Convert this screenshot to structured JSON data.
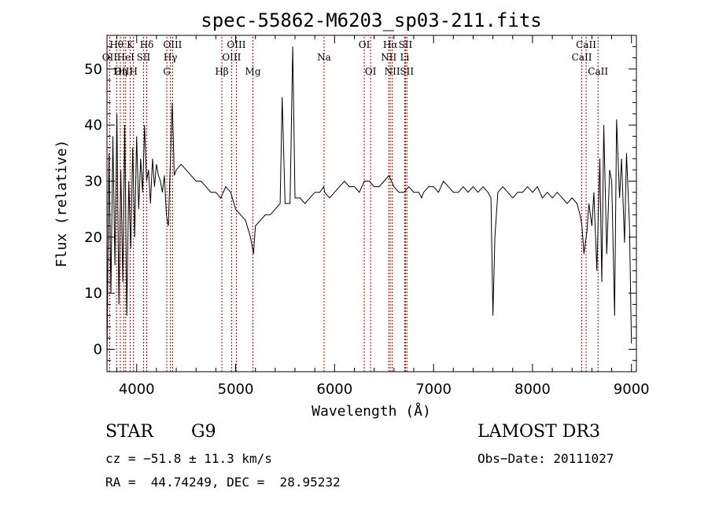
{
  "chart_data": {
    "type": "line",
    "title": "spec-55862-M6203_sp03-211.fits",
    "xlabel": "Wavelength (Å)",
    "ylabel": "Flux (relative)",
    "xlim": [
      3700,
      9050
    ],
    "ylim": [
      -4,
      56
    ],
    "xticks": [
      4000,
      5000,
      6000,
      7000,
      8000,
      9000
    ],
    "yticks": [
      0,
      10,
      20,
      30,
      40,
      50
    ],
    "grid": false,
    "line_color": "#000000",
    "marker_color": "#aa0000",
    "lines": [
      {
        "label": "Hθ",
        "wl": 3797,
        "row": 0
      },
      {
        "label": "OII",
        "wl": 3727,
        "row": 1
      },
      {
        "label": "OIII",
        "wl": 3869,
        "row": 2
      },
      {
        "label": "K",
        "wl": 3934,
        "row": 0
      },
      {
        "label": "HeI",
        "wl": 3889,
        "row": 1
      },
      {
        "label": "Hη",
        "wl": 3835,
        "row": 2
      },
      {
        "label": "Hδ",
        "wl": 4102,
        "row": 0
      },
      {
        "label": "SII",
        "wl": 4069,
        "row": 1
      },
      {
        "label": "H",
        "wl": 3968,
        "row": 2
      },
      {
        "label": "OIII",
        "wl": 4363,
        "row": 0
      },
      {
        "label": "Hγ",
        "wl": 4341,
        "row": 1
      },
      {
        "label": "G",
        "wl": 4305,
        "row": 2
      },
      {
        "label": "Hβ",
        "wl": 4861,
        "row": 2
      },
      {
        "label": "OIII",
        "wl": 5007,
        "row": 0
      },
      {
        "label": "OIII",
        "wl": 4959,
        "row": 1
      },
      {
        "label": "Mg",
        "wl": 5175,
        "row": 2
      },
      {
        "label": "Na",
        "wl": 5894,
        "row": 1
      },
      {
        "label": "OI",
        "wl": 6300,
        "row": 0
      },
      {
        "label": "OI",
        "wl": 6364,
        "row": 2
      },
      {
        "label": "Hα",
        "wl": 6563,
        "row": 0
      },
      {
        "label": "NII",
        "wl": 6548,
        "row": 1
      },
      {
        "label": "NII",
        "wl": 6583,
        "row": 2
      },
      {
        "label": "SII",
        "wl": 6716,
        "row": 0
      },
      {
        "label": "Li",
        "wl": 6708,
        "row": 1
      },
      {
        "label": "SII",
        "wl": 6731,
        "row": 2
      },
      {
        "label": "CaII",
        "wl": 8542,
        "row": 0
      },
      {
        "label": "CaII",
        "wl": 8498,
        "row": 1
      },
      {
        "label": "CaII",
        "wl": 8662,
        "row": 2
      }
    ],
    "spectrum": {
      "x": [
        3700,
        3720,
        3740,
        3760,
        3780,
        3800,
        3820,
        3840,
        3860,
        3880,
        3900,
        3920,
        3940,
        3960,
        3980,
        4000,
        4020,
        4040,
        4060,
        4080,
        4100,
        4120,
        4140,
        4160,
        4180,
        4200,
        4220,
        4240,
        4260,
        4280,
        4300,
        4320,
        4340,
        4360,
        4380,
        4400,
        4450,
        4500,
        4550,
        4600,
        4650,
        4700,
        4750,
        4800,
        4850,
        4900,
        4950,
        5000,
        5050,
        5100,
        5150,
        5180,
        5200,
        5250,
        5300,
        5350,
        5400,
        5450,
        5470,
        5500,
        5550,
        5577,
        5600,
        5650,
        5700,
        5750,
        5800,
        5850,
        5890,
        5900,
        5950,
        6000,
        6050,
        6100,
        6150,
        6200,
        6250,
        6300,
        6350,
        6400,
        6450,
        6500,
        6550,
        6600,
        6650,
        6700,
        6750,
        6800,
        6850,
        6880,
        6900,
        6950,
        7000,
        7050,
        7100,
        7150,
        7200,
        7250,
        7300,
        7350,
        7400,
        7450,
        7500,
        7550,
        7580,
        7600,
        7620,
        7650,
        7700,
        7750,
        7800,
        7850,
        7900,
        7950,
        8000,
        8050,
        8100,
        8150,
        8200,
        8250,
        8300,
        8350,
        8400,
        8450,
        8480,
        8500,
        8520,
        8550,
        8570,
        8600,
        8620,
        8650,
        8680,
        8700,
        8720,
        8750,
        8780,
        8800,
        8830,
        8850,
        8880,
        8900,
        8930,
        8950,
        8980,
        9000
      ],
      "y": [
        -2,
        35,
        10,
        38,
        15,
        42,
        8,
        32,
        12,
        40,
        6,
        30,
        18,
        36,
        20,
        38,
        25,
        34,
        28,
        40,
        30,
        32,
        26,
        34,
        29,
        33,
        31,
        30,
        28,
        31,
        24,
        22,
        33,
        44,
        31,
        32,
        33,
        32,
        31,
        30,
        30,
        29,
        28,
        28,
        27,
        29,
        28,
        25,
        24,
        23,
        20,
        17,
        22,
        23,
        24,
        24,
        25,
        26,
        45,
        26,
        26,
        54,
        27,
        27,
        26,
        27,
        28,
        28,
        29,
        28,
        27,
        28,
        29,
        30,
        29,
        29,
        28,
        30,
        30,
        29,
        29,
        30,
        31,
        29,
        28,
        28,
        29,
        28,
        28,
        27,
        28,
        29,
        29,
        28,
        30,
        29,
        28,
        28,
        29,
        28,
        29,
        28,
        29,
        28,
        27,
        6,
        20,
        28,
        29,
        28,
        27,
        28,
        28,
        29,
        28,
        29,
        27,
        28,
        27,
        28,
        27,
        26,
        27,
        26,
        24,
        22,
        17,
        21,
        26,
        22,
        28,
        14,
        34,
        12,
        40,
        17,
        32,
        30,
        6,
        41,
        27,
        34,
        19,
        35,
        22,
        1
      ]
    }
  },
  "info": {
    "object_class": "STAR",
    "subclass": "G9",
    "survey": "LAMOST DR3",
    "redshift_line": "cz = −51.8 ± 11.3 km/s",
    "obs_date": "Obs−Date: 20111027",
    "coords": "RA =  44.74249, DEC =  28.95232"
  }
}
